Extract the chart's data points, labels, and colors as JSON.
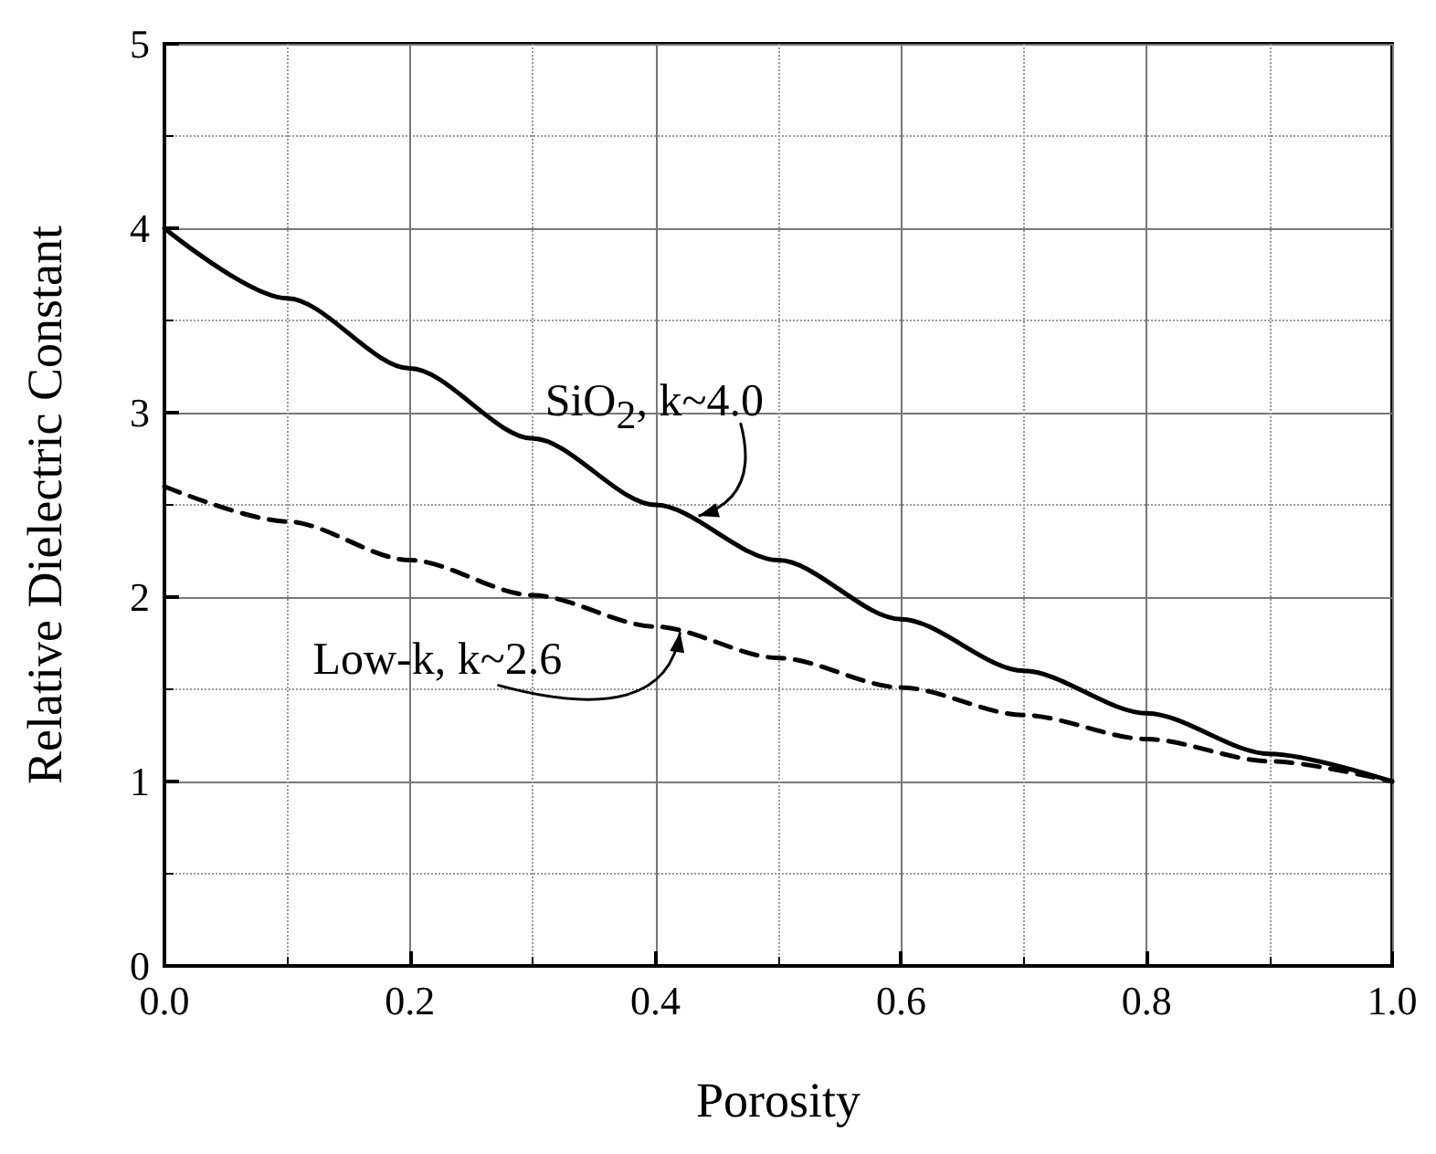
{
  "chart_data": {
    "type": "line",
    "xlabel": "Porosity",
    "ylabel": "Relative Dielectric Constant",
    "x": [
      0,
      0.1,
      0.2,
      0.3,
      0.4,
      0.5,
      0.6,
      0.7,
      0.8,
      0.9,
      1.0
    ],
    "series": [
      {
        "color": "#000000",
        "line_style": "solid",
        "values": [
          4.0,
          3.62,
          3.24,
          2.86,
          2.5,
          2.2,
          1.88,
          1.6,
          1.37,
          1.15,
          1.0
        ]
      },
      {
        "color": "#000000",
        "line_style": "dashed",
        "values": [
          2.6,
          2.41,
          2.2,
          2.01,
          1.84,
          1.67,
          1.51,
          1.36,
          1.23,
          1.11,
          1.0
        ]
      }
    ],
    "xlim": [
      0,
      1.0
    ],
    "xticks": [
      {
        "value": 0,
        "label": "0.0"
      },
      0.2,
      0.4,
      0.6,
      0.8,
      {
        "value": 1.0,
        "label": "1.0"
      }
    ],
    "ylim": [
      0,
      5
    ],
    "yticks": [
      0,
      1,
      2,
      3,
      4,
      5
    ],
    "grid": true,
    "marker": "none",
    "annotations": [
      {
        "text": "SiO$_{2}$, k~4.0",
        "x": 0.435,
        "y": 2.44
      },
      {
        "text": "Low-k, k~2.6",
        "x": 0.42,
        "y": 1.81
      }
    ]
  }
}
